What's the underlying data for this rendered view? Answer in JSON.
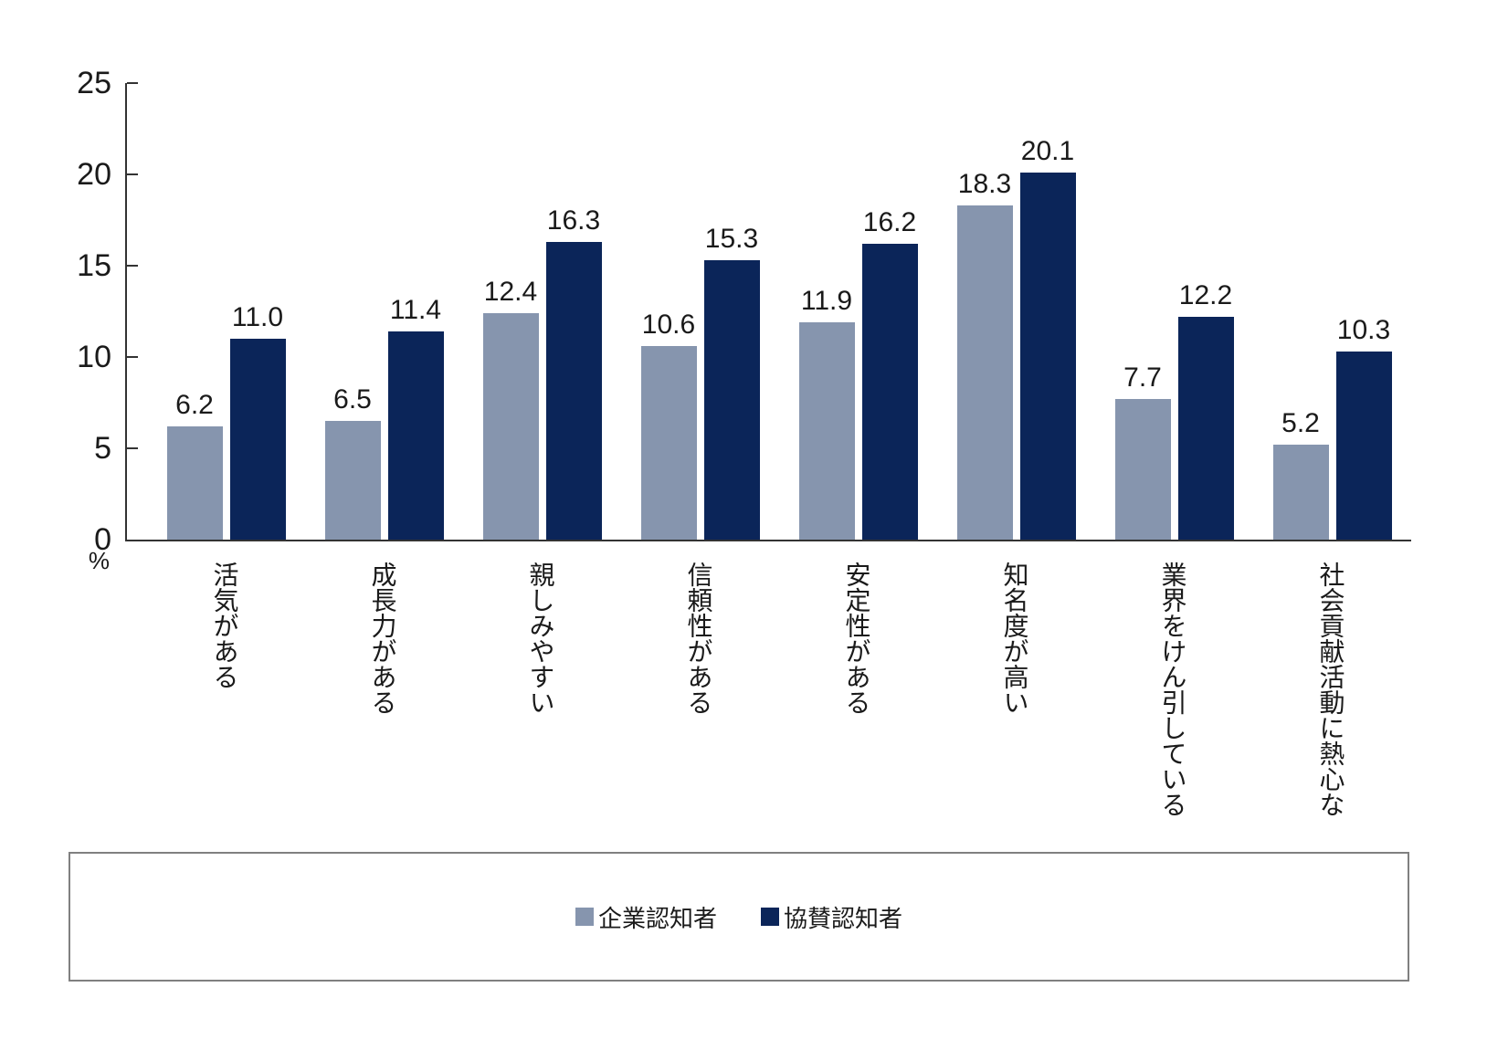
{
  "chart_data": {
    "type": "bar",
    "title": "",
    "categories": [
      "活気がある",
      "成長力がある",
      "親しみやすい",
      "信頼性がある",
      "安定性がある",
      "知名度が高い",
      "業界をけん引している",
      "社会貢献活動に熱心な"
    ],
    "series": [
      {
        "name": "企業認知者",
        "color": "#8695AE",
        "values": [
          6.2,
          6.5,
          12.4,
          10.6,
          11.9,
          18.3,
          7.7,
          5.2
        ]
      },
      {
        "name": "協賛認知者",
        "color": "#0B2559",
        "values": [
          11.0,
          11.4,
          16.3,
          15.3,
          16.2,
          20.1,
          12.2,
          10.3
        ]
      }
    ],
    "xlabel": "",
    "ylabel": "%",
    "ylim": [
      0,
      25
    ],
    "yticks": [
      0,
      5,
      10,
      15,
      20,
      25
    ],
    "grid": false,
    "value_labels": true,
    "value_label_format": "one-decimal",
    "legend_position": "bottom-box",
    "category_text_direction": "vertical"
  },
  "colors": {
    "axis": "#333333",
    "legend_border": "#808080",
    "text": "#1a1a1a",
    "background": "#ffffff"
  }
}
